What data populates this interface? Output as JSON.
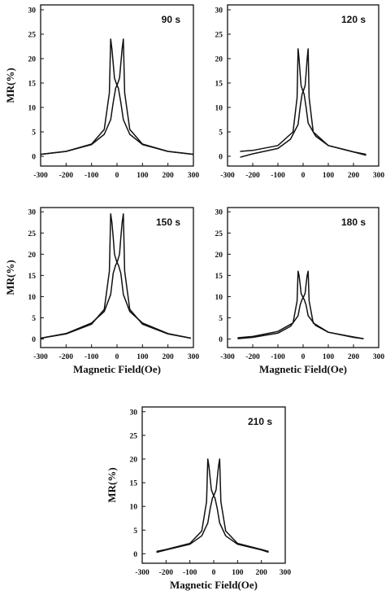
{
  "chart_data": [
    {
      "type": "line",
      "annotation": "90 s",
      "ylabel": "MR(%)",
      "xlabel": "",
      "xlim": [
        -300,
        300
      ],
      "ylim": [
        -2,
        31
      ],
      "xticks": [
        -300,
        -200,
        -100,
        0,
        100,
        200,
        300
      ],
      "yticks": [
        0,
        5,
        10,
        15,
        20,
        25,
        30
      ],
      "peak_mr": 24,
      "peak_field": 25,
      "field_range": [
        -300,
        300
      ],
      "series": [
        {
          "x": [
            300,
            200,
            100,
            50,
            25,
            15,
            5,
            0,
            -10,
            -15,
            -20,
            -25,
            -30,
            -50,
            -100,
            -200,
            -300
          ],
          "y": [
            0.4,
            1.0,
            2.4,
            4.5,
            7.5,
            11,
            14,
            14.5,
            16,
            19,
            22,
            24,
            13,
            5.5,
            2.5,
            1.0,
            0.4
          ]
        },
        {
          "x": [
            -300,
            -200,
            -100,
            -50,
            -25,
            -15,
            -5,
            0,
            10,
            15,
            20,
            25,
            30,
            50,
            100,
            200,
            300
          ],
          "y": [
            0.4,
            1.0,
            2.4,
            4.5,
            7.5,
            11,
            14,
            14.5,
            16,
            19,
            22,
            24,
            13,
            5.5,
            2.5,
            1.0,
            0.4
          ]
        }
      ]
    },
    {
      "type": "line",
      "annotation": "120 s",
      "ylabel": "",
      "xlabel": "",
      "xlim": [
        -300,
        300
      ],
      "ylim": [
        -2,
        31
      ],
      "xticks": [
        -300,
        -200,
        -100,
        0,
        100,
        200,
        300
      ],
      "yticks": [
        0,
        5,
        10,
        15,
        20,
        25,
        30
      ],
      "peak_mr": 22,
      "peak_field": 20,
      "field_range": [
        -250,
        250
      ],
      "series": [
        {
          "x": [
            250,
            200,
            100,
            50,
            20,
            12,
            4,
            0,
            -8,
            -12,
            -16,
            -20,
            -24,
            -40,
            -100,
            -200,
            -250
          ],
          "y": [
            0.2,
            0.9,
            2.2,
            4.1,
            6.8,
            10,
            12.8,
            13.2,
            14.5,
            17,
            20,
            22,
            12,
            5,
            2.2,
            1.2,
            1.0
          ]
        },
        {
          "x": [
            -250,
            -200,
            -100,
            -50,
            -20,
            -12,
            -4,
            0,
            8,
            12,
            16,
            20,
            24,
            40,
            100,
            200,
            250
          ],
          "y": [
            -0.2,
            0.5,
            1.6,
            3.5,
            6.5,
            10,
            12.8,
            13.2,
            14.5,
            17,
            20,
            22,
            12,
            5,
            2.2,
            0.9,
            0.4
          ]
        }
      ]
    },
    {
      "type": "line",
      "annotation": "150 s",
      "ylabel": "MR(%)",
      "xlabel": "Magnetic Field(Oe)",
      "xlim": [
        -300,
        300
      ],
      "ylim": [
        -2,
        31
      ],
      "xticks": [
        -300,
        -200,
        -100,
        0,
        100,
        200,
        300
      ],
      "yticks": [
        0,
        5,
        10,
        15,
        20,
        25,
        30
      ],
      "peak_mr": 29.5,
      "peak_field": 25,
      "field_range": [
        -300,
        300
      ],
      "series": [
        {
          "x": [
            290,
            200,
            100,
            50,
            25,
            15,
            5,
            0,
            -10,
            -15,
            -20,
            -25,
            -30,
            -50,
            -100,
            -200,
            -300
          ],
          "y": [
            0.2,
            1.3,
            3.8,
            6.5,
            10.5,
            15.5,
            17.5,
            18,
            20,
            24,
            27.5,
            29.5,
            16,
            7,
            3.5,
            1.2,
            0.2
          ]
        },
        {
          "x": [
            -300,
            -200,
            -100,
            -50,
            -25,
            -15,
            -5,
            0,
            10,
            15,
            20,
            25,
            30,
            50,
            100,
            200,
            290
          ],
          "y": [
            0.2,
            1.3,
            3.8,
            6.5,
            10.5,
            15.5,
            17.5,
            18,
            20,
            24,
            27.5,
            29.5,
            16,
            7,
            3.5,
            1.2,
            0.2
          ]
        }
      ]
    },
    {
      "type": "line",
      "annotation": "180 s",
      "ylabel": "",
      "xlabel": "Magnetic Field(Oe)",
      "xlim": [
        -300,
        300
      ],
      "ylim": [
        -2,
        31
      ],
      "xticks": [
        -300,
        -200,
        -100,
        0,
        100,
        200,
        300
      ],
      "yticks": [
        0,
        5,
        10,
        15,
        20,
        25,
        30
      ],
      "peak_mr": 16,
      "peak_field": 20,
      "field_range": [
        -250,
        250
      ],
      "series": [
        {
          "x": [
            240,
            200,
            100,
            50,
            20,
            12,
            4,
            0,
            -8,
            -12,
            -16,
            -20,
            -24,
            -40,
            -100,
            -200,
            -260
          ],
          "y": [
            0.1,
            0.5,
            1.6,
            3.2,
            5.5,
            8,
            9.4,
            9.7,
            10.8,
            13,
            15,
            16,
            9,
            3.8,
            1.8,
            0.6,
            0.3
          ]
        },
        {
          "x": [
            -260,
            -200,
            -100,
            -50,
            -20,
            -12,
            -4,
            0,
            8,
            12,
            16,
            20,
            24,
            40,
            100,
            200,
            240
          ],
          "y": [
            0.1,
            0.4,
            1.4,
            3.0,
            5.5,
            8,
            9.4,
            9.7,
            10.8,
            13,
            15,
            16,
            9,
            3.8,
            1.6,
            0.4,
            0.1
          ]
        }
      ]
    },
    {
      "type": "line",
      "annotation": "210 s",
      "ylabel": "MR(%)",
      "xlabel": "Magnetic Field(Oe)",
      "xlim": [
        -300,
        300
      ],
      "ylim": [
        -2,
        31
      ],
      "xticks": [
        -300,
        -200,
        -100,
        0,
        100,
        200,
        300
      ],
      "yticks": [
        0,
        5,
        10,
        15,
        20,
        25,
        30
      ],
      "peak_mr": 20,
      "peak_field": 25,
      "field_range": [
        -250,
        250
      ],
      "series": [
        {
          "x": [
            230,
            200,
            100,
            50,
            25,
            15,
            5,
            0,
            -10,
            -15,
            -20,
            -25,
            -30,
            -50,
            -100,
            -200,
            -240
          ],
          "y": [
            0.3,
            0.8,
            2.0,
            3.8,
            6.5,
            9.5,
            11.8,
            12.2,
            13.5,
            16,
            18.5,
            20,
            11,
            4.8,
            2.2,
            0.9,
            0.5
          ]
        },
        {
          "x": [
            -240,
            -200,
            -100,
            -50,
            -25,
            -15,
            -5,
            0,
            10,
            15,
            20,
            25,
            30,
            50,
            100,
            200,
            230
          ],
          "y": [
            0.3,
            0.8,
            2.0,
            3.8,
            6.5,
            9.5,
            11.8,
            12.2,
            13.5,
            16,
            18.5,
            20,
            11,
            4.8,
            2.2,
            0.9,
            0.5
          ]
        }
      ]
    }
  ]
}
